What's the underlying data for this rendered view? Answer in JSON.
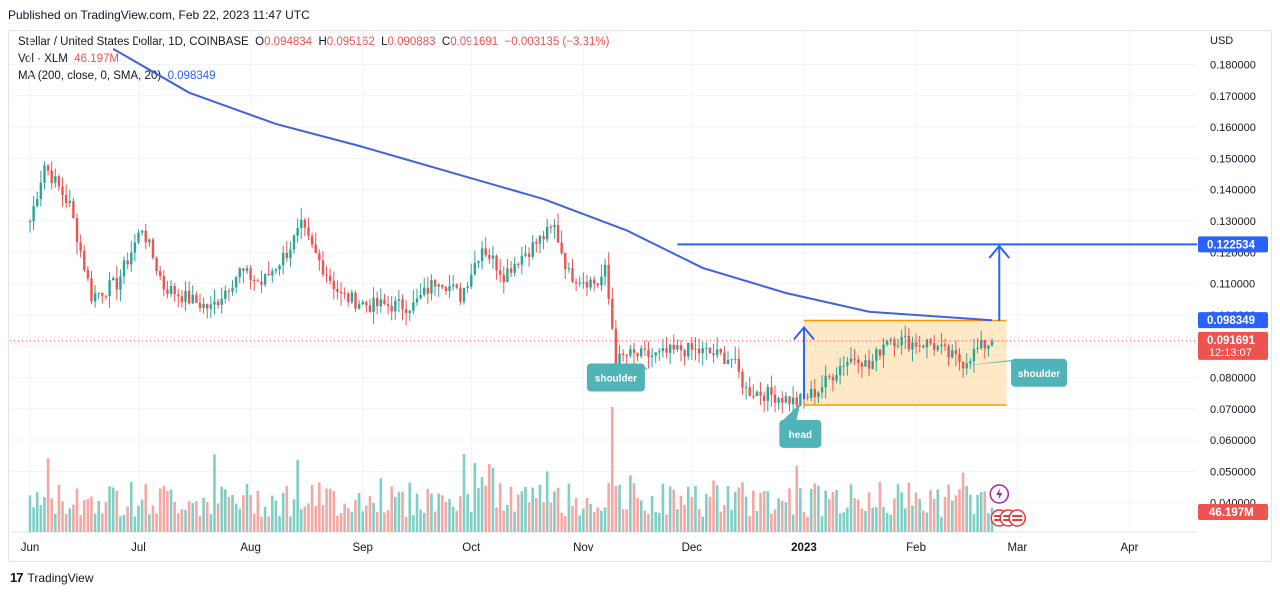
{
  "header": {
    "published": "Published on TradingView.com, Feb 22, 2023 11:47 UTC"
  },
  "legend": {
    "symbol": "Stellar / United States Dollar, 1D, COINBASE",
    "o_label": "O",
    "o": "0.094834",
    "h_label": "H",
    "h": "0.095162",
    "l_label": "L",
    "l": "0.090883",
    "c_label": "C",
    "c": "0.091691",
    "change": "−0.003135 (−3.31%)",
    "vol_label": "Vol · XLM",
    "vol": "46.197M",
    "ma_label": "MA (200, close, 0, SMA, 20)",
    "ma": "0.098349"
  },
  "footer": {
    "brand": "TradingView"
  },
  "colors": {
    "up": "#26a69a",
    "down": "#ef5350",
    "ma": "#3e63dd",
    "target": "#2962ff",
    "box_fill": "#ffe0b2",
    "box_edge": "#ff9800",
    "label_bg": "#4fb3b8"
  },
  "chart_data": {
    "type": "candlestick",
    "currency": "USD",
    "x_ticks": [
      "Jun",
      "Jul",
      "Aug",
      "Sep",
      "Oct",
      "Nov",
      "Dec",
      "2023",
      "Feb",
      "Mar",
      "Apr"
    ],
    "y_ticks": [
      "0.180000",
      "0.170000",
      "0.160000",
      "0.150000",
      "0.140000",
      "0.130000",
      "0.120000",
      "0.110000",
      "0.100000",
      "0.090000",
      "0.080000",
      "0.070000",
      "0.060000",
      "0.050000",
      "0.040000"
    ],
    "ylim": [
      0.0375,
      0.186
    ],
    "price_tags": [
      {
        "value": 0.122534,
        "text": "0.122534",
        "color": "#2962ff"
      },
      {
        "value": 0.098349,
        "text": "0.098349",
        "color": "#2962ff"
      },
      {
        "value": 0.091691,
        "text": "0.091691",
        "sub": "12:13:07",
        "color": "#ef5350"
      }
    ],
    "volume_tag": "46.197M",
    "key_points": [
      {
        "date": "2022-06-01",
        "price": 0.13
      },
      {
        "date": "2022-06-05",
        "price": 0.148
      },
      {
        "date": "2022-06-12",
        "price": 0.135
      },
      {
        "date": "2022-06-18",
        "price": 0.106
      },
      {
        "date": "2022-06-25",
        "price": 0.11
      },
      {
        "date": "2022-07-02",
        "price": 0.128
      },
      {
        "date": "2022-07-08",
        "price": 0.109
      },
      {
        "date": "2022-07-15",
        "price": 0.105
      },
      {
        "date": "2022-07-21",
        "price": 0.102
      },
      {
        "date": "2022-07-29",
        "price": 0.114
      },
      {
        "date": "2022-08-04",
        "price": 0.11
      },
      {
        "date": "2022-08-11",
        "price": 0.12
      },
      {
        "date": "2022-08-15",
        "price": 0.128
      },
      {
        "date": "2022-08-19",
        "price": 0.119
      },
      {
        "date": "2022-08-26",
        "price": 0.106
      },
      {
        "date": "2022-09-03",
        "price": 0.103
      },
      {
        "date": "2022-09-15",
        "price": 0.103
      },
      {
        "date": "2022-09-22",
        "price": 0.112
      },
      {
        "date": "2022-09-28",
        "price": 0.106
      },
      {
        "date": "2022-10-04",
        "price": 0.122
      },
      {
        "date": "2022-10-10",
        "price": 0.113
      },
      {
        "date": "2022-10-14",
        "price": 0.118
      },
      {
        "date": "2022-10-20",
        "price": 0.124
      },
      {
        "date": "2022-10-24",
        "price": 0.128
      },
      {
        "date": "2022-10-28",
        "price": 0.113
      },
      {
        "date": "2022-11-05",
        "price": 0.11
      },
      {
        "date": "2022-11-07",
        "price": 0.114
      },
      {
        "date": "2022-11-09",
        "price": 0.096
      },
      {
        "date": "2022-11-10",
        "price": 0.085
      },
      {
        "date": "2022-11-13",
        "price": 0.087
      },
      {
        "date": "2022-11-22",
        "price": 0.087
      },
      {
        "date": "2022-11-28",
        "price": 0.089
      },
      {
        "date": "2022-12-05",
        "price": 0.088
      },
      {
        "date": "2022-12-12",
        "price": 0.086
      },
      {
        "date": "2022-12-16",
        "price": 0.076
      },
      {
        "date": "2022-12-25",
        "price": 0.074
      },
      {
        "date": "2022-12-30",
        "price": 0.072
      },
      {
        "date": "2023-01-05",
        "price": 0.076
      },
      {
        "date": "2023-01-12",
        "price": 0.085
      },
      {
        "date": "2023-01-16",
        "price": 0.087
      },
      {
        "date": "2023-01-19",
        "price": 0.083
      },
      {
        "date": "2023-01-24",
        "price": 0.093
      },
      {
        "date": "2023-01-31",
        "price": 0.091
      },
      {
        "date": "2023-02-05",
        "price": 0.091
      },
      {
        "date": "2023-02-10",
        "price": 0.087
      },
      {
        "date": "2023-02-14",
        "price": 0.085
      },
      {
        "date": "2023-02-18",
        "price": 0.089
      },
      {
        "date": "2023-02-22",
        "price": 0.0917
      }
    ],
    "ma200": [
      {
        "date": "2022-06-24",
        "price": 0.185
      },
      {
        "date": "2022-07-15",
        "price": 0.171
      },
      {
        "date": "2022-08-08",
        "price": 0.161
      },
      {
        "date": "2022-08-31",
        "price": 0.154
      },
      {
        "date": "2022-09-27",
        "price": 0.145
      },
      {
        "date": "2022-10-21",
        "price": 0.137
      },
      {
        "date": "2022-11-13",
        "price": 0.127
      },
      {
        "date": "2022-12-04",
        "price": 0.115
      },
      {
        "date": "2022-12-27",
        "price": 0.107
      },
      {
        "date": "2023-01-19",
        "price": 0.101
      },
      {
        "date": "2023-02-22",
        "price": 0.0983
      }
    ],
    "range_box": {
      "start": "2023-01-01",
      "end": "2023-02-26",
      "top": 0.0982,
      "bottom": 0.0712
    },
    "target_line": {
      "start": "2022-11-27",
      "value": 0.122534
    },
    "arrows": [
      {
        "date": "2023-01-01",
        "from": 0.073,
        "to": 0.096
      },
      {
        "date": "2023-02-24",
        "from": 0.098,
        "to": 0.122
      }
    ],
    "annotations": [
      {
        "text": "shoulder",
        "date": "2022-11-10",
        "price": 0.08
      },
      {
        "text": "head",
        "date": "2022-12-31",
        "price": 0.062
      },
      {
        "text": "shoulder",
        "date": "2023-03-07",
        "price": 0.0815
      }
    ]
  }
}
